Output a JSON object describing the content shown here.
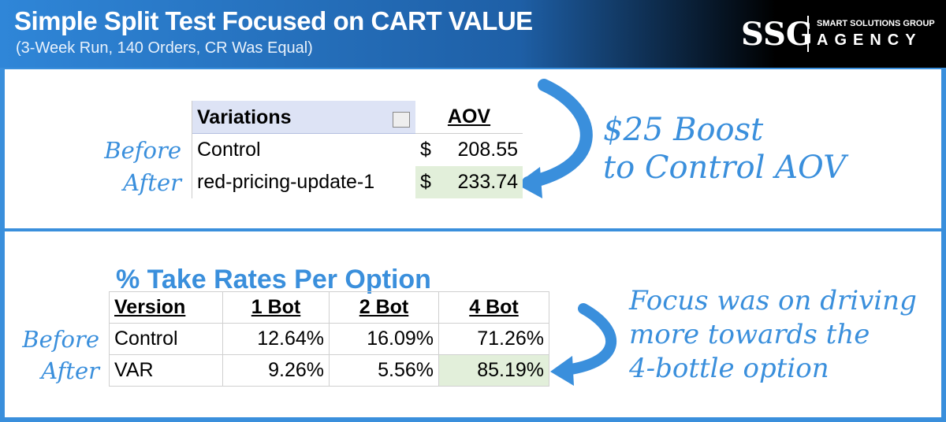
{
  "header": {
    "title": "Simple Split Test Focused on CART VALUE",
    "subtitle": "(3-Week Run, 140 Orders, CR Was Equal)",
    "logo": {
      "mark": "SSG",
      "line1": "SMART SOLUTIONS GROUP",
      "line2": "AGENCY"
    }
  },
  "aov_table": {
    "columns": [
      "Variations",
      "AOV"
    ],
    "rows": [
      [
        "Control",
        "$",
        "208.55"
      ],
      [
        "red-pricing-update-1",
        "$",
        "233.74"
      ]
    ],
    "row_labels": [
      "Before",
      "After"
    ],
    "annotation": [
      "$25 Boost",
      "to Control AOV"
    ]
  },
  "take_rates": {
    "title": "% Take Rates Per Option",
    "columns": [
      "Version",
      "1 Bot",
      "2 Bot",
      "4 Bot"
    ],
    "rows": [
      [
        "Control",
        "12.64%",
        "16.09%",
        "71.26%"
      ],
      [
        "VAR",
        "9.26%",
        "5.56%",
        "85.19%"
      ]
    ],
    "row_labels": [
      "Before",
      "After"
    ],
    "annotation": [
      "Focus was on driving",
      "more towards the",
      "4-bottle option"
    ]
  }
}
